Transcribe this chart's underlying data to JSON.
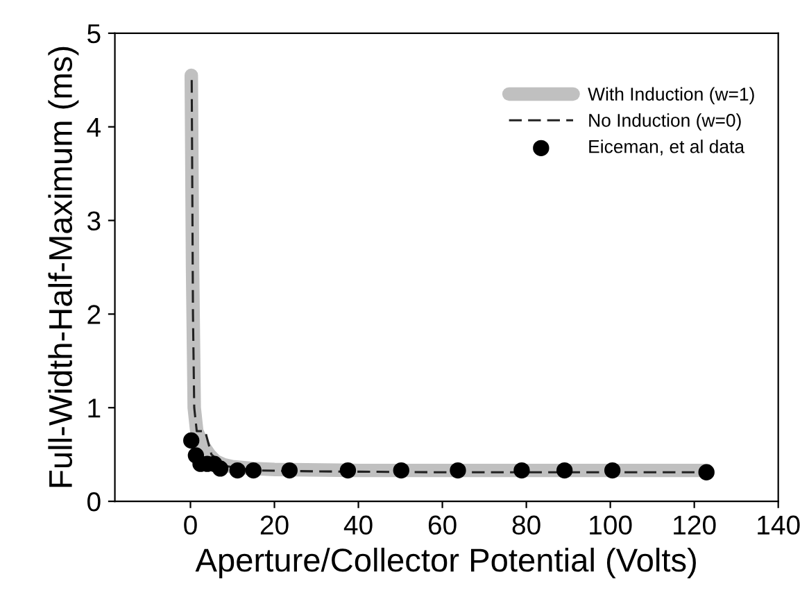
{
  "chart_data": {
    "type": "line",
    "xlabel": "Aperture/Collector Potential (Volts)",
    "ylabel": "Full-Width-Half-Maximum (ms)",
    "xlim": [
      -18,
      140
    ],
    "ylim": [
      0,
      5
    ],
    "xticks": [
      0,
      20,
      40,
      60,
      80,
      100,
      120,
      140
    ],
    "yticks": [
      0,
      1,
      2,
      3,
      4,
      5
    ],
    "grid": false,
    "legend": "top right",
    "series": [
      {
        "name": "With Induction (w=1)",
        "color": "#c0c0c0",
        "line_style": "solid",
        "marker": "none",
        "x": [
          0.2,
          0.5,
          0.9,
          1.5,
          3,
          4.5,
          6,
          8,
          10,
          15,
          20,
          40,
          80,
          123
        ],
        "values": [
          4.55,
          2.5,
          1.0,
          0.75,
          0.6,
          0.5,
          0.43,
          0.39,
          0.37,
          0.35,
          0.34,
          0.33,
          0.33,
          0.33
        ]
      },
      {
        "name": "No Induction (w=0)",
        "color": "#222222",
        "line_style": "dashed",
        "marker": "none",
        "x": [
          0.3,
          0.6,
          0.9,
          1.5,
          3.5,
          5,
          8,
          15,
          30,
          60,
          123
        ],
        "values": [
          4.5,
          2.0,
          1.0,
          0.75,
          0.75,
          0.5,
          0.38,
          0.33,
          0.32,
          0.31,
          0.31
        ]
      },
      {
        "name": "Eiceman, et al data",
        "type": "scatter",
        "color": "#000000",
        "marker": "circle",
        "x": [
          0.2,
          1.3,
          2.4,
          4.0,
          5.7,
          7.1,
          11.2,
          15.0,
          23.6,
          37.5,
          50.2,
          63.7,
          78.9,
          89.1,
          100.5,
          122.9
        ],
        "values": [
          0.65,
          0.49,
          0.4,
          0.4,
          0.4,
          0.35,
          0.33,
          0.33,
          0.33,
          0.33,
          0.33,
          0.33,
          0.33,
          0.33,
          0.33,
          0.31
        ]
      }
    ]
  }
}
